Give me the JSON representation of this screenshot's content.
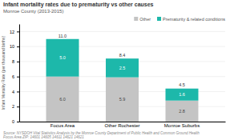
{
  "chart_data": {
    "type": "bar",
    "stacked": true,
    "title": "Infant mortality rates due to prematurity vs other causes",
    "subtitle": "Monroe County (2013-2015)",
    "categories": [
      "Focus Area",
      "Other Rochester",
      "Monroe Suburbs"
    ],
    "series": [
      {
        "name": "Other",
        "color": "#c4c4c4",
        "values": [
          6.0,
          5.9,
          2.8
        ],
        "value_labels": [
          "6.0",
          "5.9",
          "2.8"
        ]
      },
      {
        "name": "Prematurity & related conditions",
        "color": "#1db8aa",
        "values": [
          5.0,
          2.5,
          1.6
        ],
        "value_labels": [
          "5.0",
          "2.5",
          "1.6"
        ]
      }
    ],
    "totals": [
      11.0,
      8.4,
      4.5
    ],
    "total_labels": [
      "11.0",
      "8.4",
      "4.5"
    ],
    "ylabel": "Infant Mortality Rate (per thousand births)",
    "ylim": [
      0,
      13
    ],
    "yticks": [
      0,
      2,
      4,
      6,
      8,
      10,
      12
    ],
    "grid": true,
    "legend": "top-right",
    "data_labels": true,
    "source": "Source: NYSDOH Vital Statistics Analysis by the Monroe County Department of Public Health and Common Ground Health\nFocus Area ZIP: 14601 14605 14611 14621 14621"
  }
}
